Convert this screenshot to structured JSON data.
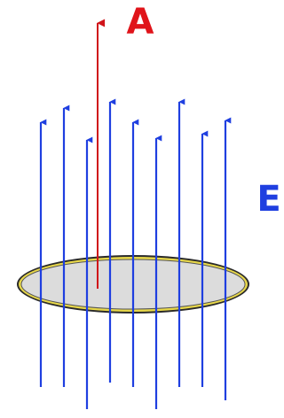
{
  "labels": {
    "area_vector": "A",
    "field": "E"
  }
}
